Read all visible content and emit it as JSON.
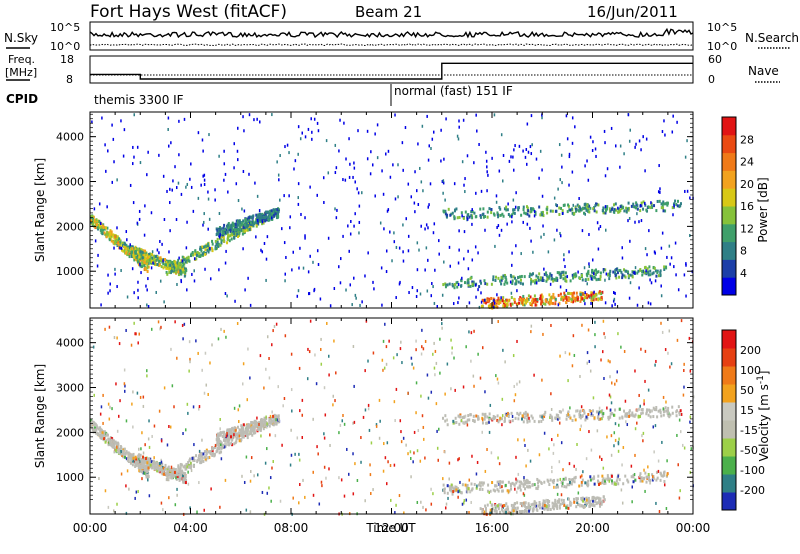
{
  "chart_data": {
    "type": "heatmap",
    "header": {
      "title": "Fort Hays West (fitACF)",
      "beam": "Beam 21",
      "date": "16/Jun/2011"
    },
    "noise_panel": {
      "left_label": "N.Sky",
      "right_label": "N.Search",
      "left_ticks": [
        "10^5",
        "10^0"
      ],
      "right_ticks": [
        "10^5",
        "10^0"
      ]
    },
    "freq_panel": {
      "left_label_line1": "Freq.",
      "left_label_line2": "[MHz]",
      "right_label": "Nave",
      "left_ticks": [
        18,
        8
      ],
      "right_ticks": [
        60,
        0
      ],
      "freq_mhz": {
        "x": [
          0,
          2,
          2,
          14,
          14,
          24
        ],
        "y": [
          11.2,
          11.2,
          9.5,
          9.5,
          15.3,
          15.3
        ]
      }
    },
    "cpid_panel": {
      "label": "CPID",
      "segments": [
        {
          "start": 0,
          "end": 12.4,
          "text": "themis 3300 IF"
        },
        {
          "start": 12.4,
          "end": 24,
          "text": "normal (fast) 151 IF"
        }
      ]
    },
    "x_axis": {
      "label": "Time UT",
      "ticks": [
        "00:00",
        "04:00",
        "08:00",
        "12:00",
        "16:00",
        "20:00",
        "00:00"
      ],
      "range": [
        0,
        24
      ]
    },
    "y_axis": {
      "label": "Slant Range [km]",
      "ticks": [
        "1000",
        "2000",
        "3000",
        "4000"
      ],
      "range": [
        180,
        4550
      ]
    },
    "power_panel": {
      "colorbar_label": "Power [dB]",
      "colorbar_ticks": [
        "4",
        "8",
        "12",
        "16",
        "20",
        "24",
        "28"
      ],
      "colorbar_colors": [
        "#0000e6",
        "#1c3fa8",
        "#2f7f86",
        "#3f9f6a",
        "#86c23a",
        "#d8c816",
        "#f2a21e",
        "#f07a18",
        "#ea4a12",
        "#e11414"
      ],
      "structures": [
        {
          "name": "evening_echo_band",
          "t_start": 0.0,
          "t_end": 2.3,
          "range_start_km": 2200,
          "range_end_km": 1100,
          "peak_db": 22
        },
        {
          "name": "trough_near_02ut",
          "t_start": 1.6,
          "t_end": 3.8,
          "range_start_km": 1500,
          "range_end_km": 1000,
          "peak_db": 20
        },
        {
          "name": "rising_arc",
          "t_start": 3.0,
          "t_end": 7.0,
          "range_start_km": 1050,
          "range_end_km": 2250,
          "peak_db": 18
        },
        {
          "name": "upper_arc",
          "t_start": 5.0,
          "t_end": 7.5,
          "range_start_km": 1900,
          "range_end_km": 2350,
          "peak_db": 12
        },
        {
          "name": "morning_patch",
          "t_start": 14.0,
          "t_end": 23.5,
          "range_start_km": 2300,
          "range_end_km": 2500,
          "peak_db": 14
        },
        {
          "name": "low_band",
          "t_start": 14.0,
          "t_end": 23.0,
          "range_start_km": 750,
          "range_end_km": 1050,
          "peak_db": 14
        },
        {
          "name": "strong_near_range",
          "t_start": 15.5,
          "t_end": 20.5,
          "range_start_km": 300,
          "range_end_km": 500,
          "peak_db": 30
        }
      ]
    },
    "velocity_panel": {
      "colorbar_label": "Velocity [m s",
      "colorbar_label_sup": "-1",
      "colorbar_ticks": [
        "200",
        "100",
        "50",
        "15",
        "-15",
        "-50",
        "-100",
        "-200"
      ],
      "colorbar_colors": [
        "#1d2cb5",
        "#2f7f86",
        "#4bb04b",
        "#9ccf48",
        "#bfbfb0",
        "#c9c9c0",
        "#f2a21e",
        "#ef7a18",
        "#e64012",
        "#e11414"
      ],
      "ground_scatter_color": "#bcbcb4"
    }
  }
}
